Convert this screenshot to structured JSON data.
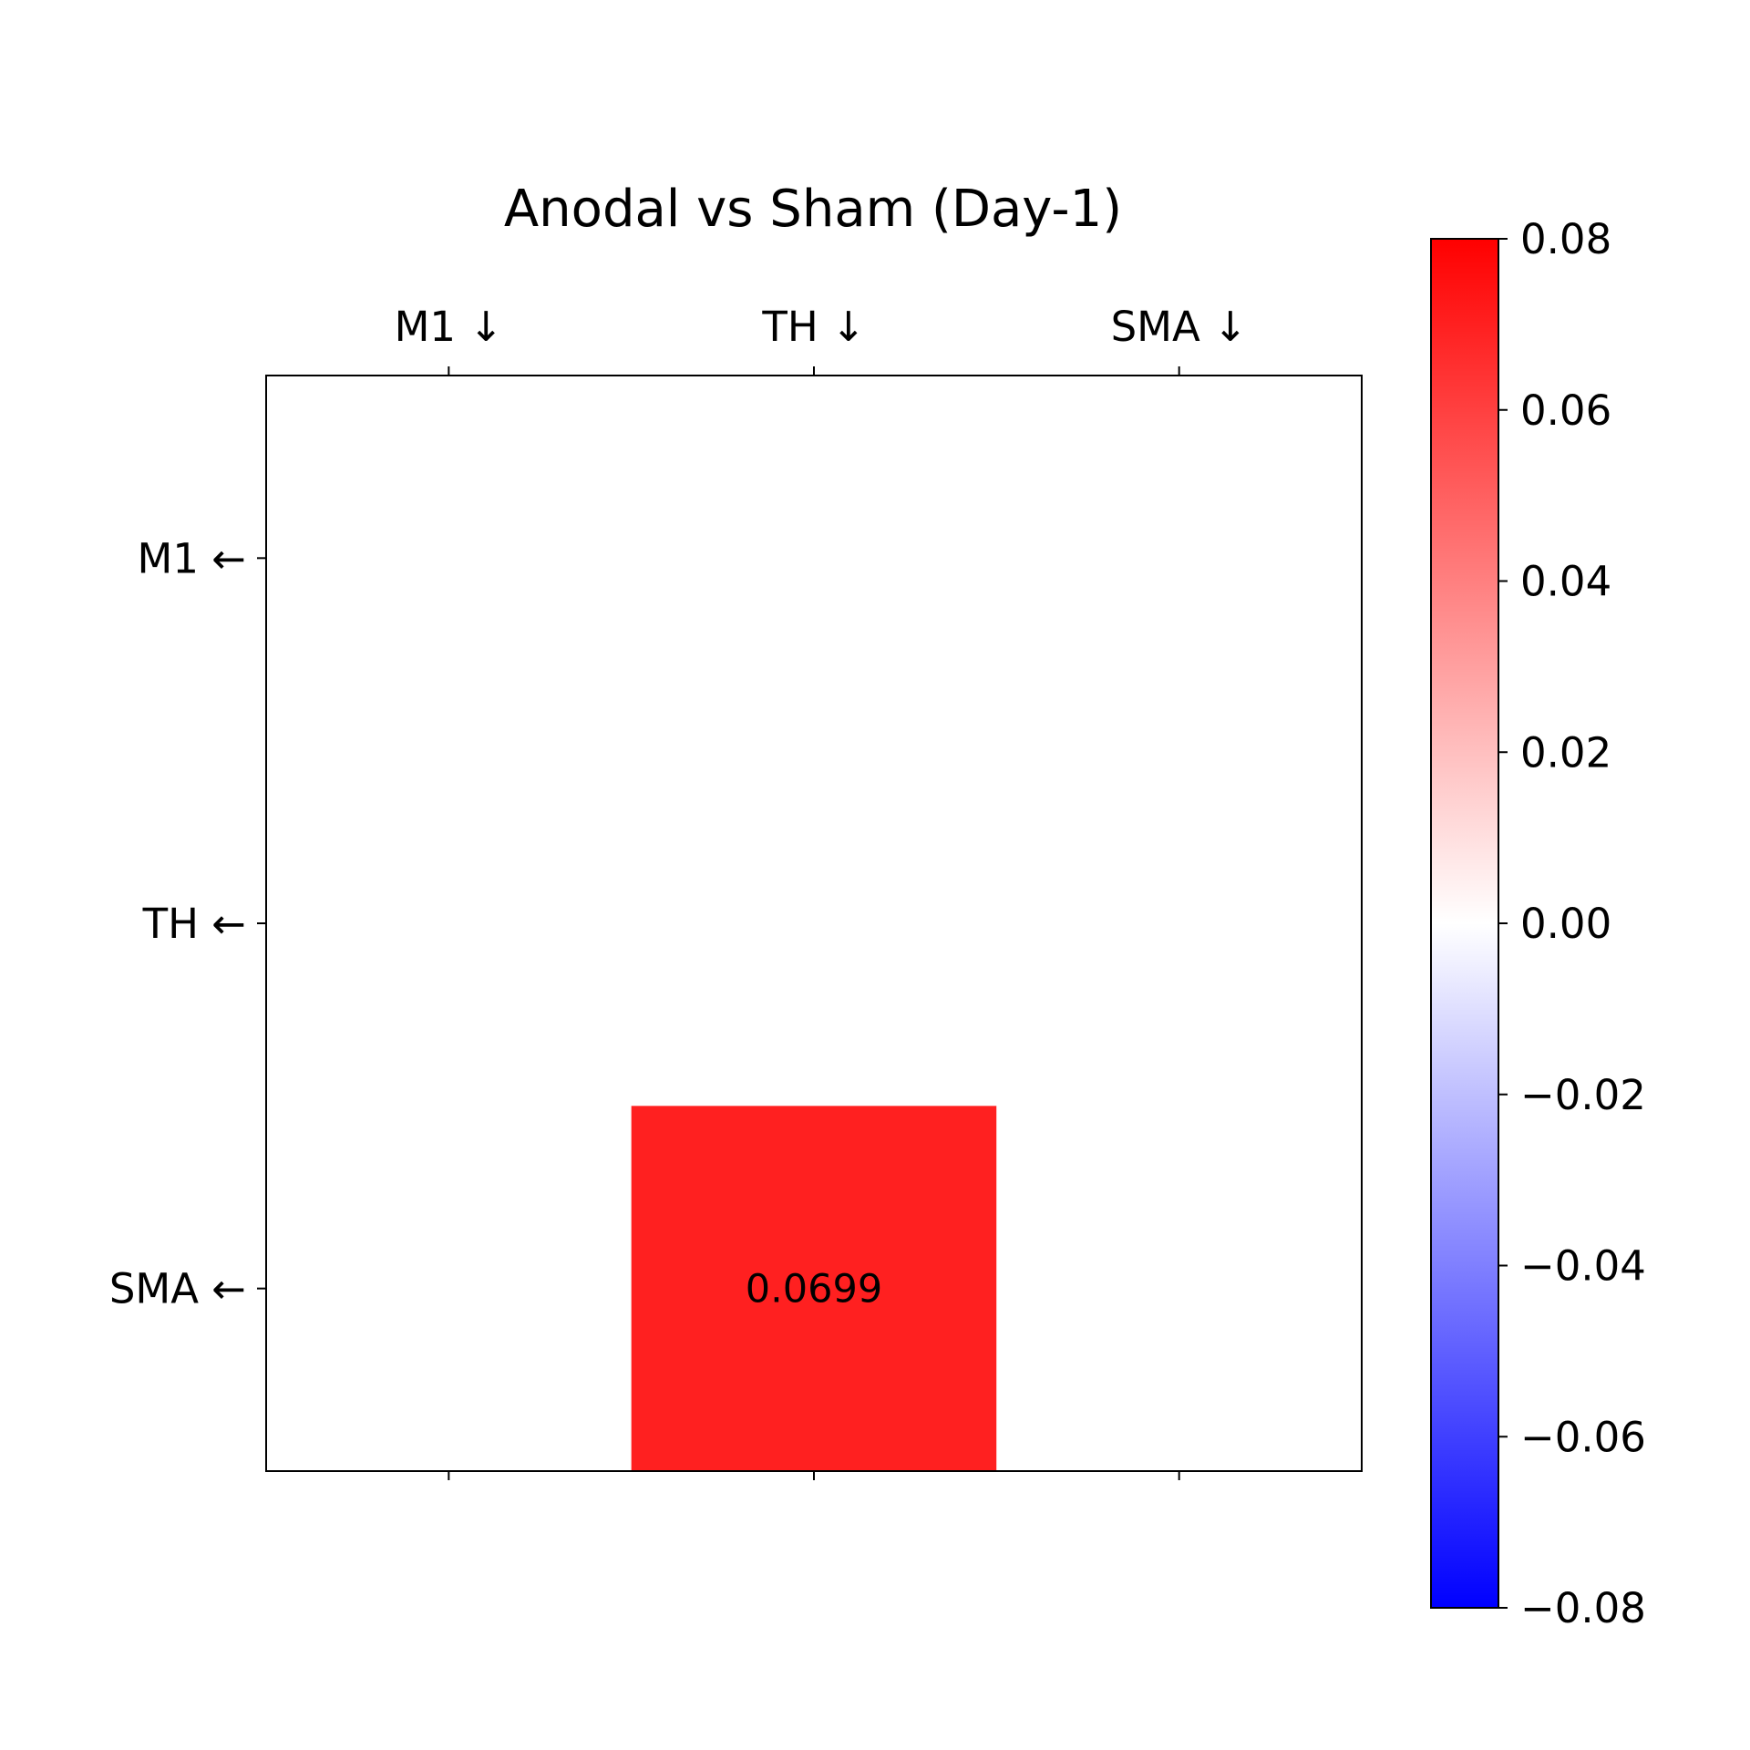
{
  "chart_data": {
    "type": "heatmap",
    "title": "Anodal vs Sham (Day-1)",
    "x_tick_labels": [
      "M1 ↓",
      "TH ↓",
      "SMA ↓"
    ],
    "y_tick_labels": [
      "M1 ←",
      "TH ←",
      "SMA ←"
    ],
    "x_ticks_position": "top",
    "values": [
      [
        0,
        0,
        0
      ],
      [
        0,
        0,
        0
      ],
      [
        0,
        0.0699,
        0
      ]
    ],
    "annotations": [
      {
        "row": 2,
        "col": 1,
        "text": "0.0699"
      }
    ],
    "colormap": "bwr",
    "colormap_colors": [
      "#0000ff",
      "#ffffff",
      "#ff0000"
    ],
    "vmin": -0.08,
    "vmax": 0.08,
    "colorbar": {
      "position": "right",
      "ticks": [
        0.08,
        0.06,
        0.04,
        0.02,
        0.0,
        -0.02,
        -0.04,
        -0.06,
        -0.08
      ],
      "tick_labels": [
        "0.08",
        "0.06",
        "0.04",
        "0.02",
        "0.00",
        "−0.02",
        "−0.04",
        "−0.06",
        "−0.08"
      ]
    },
    "grid": false
  }
}
